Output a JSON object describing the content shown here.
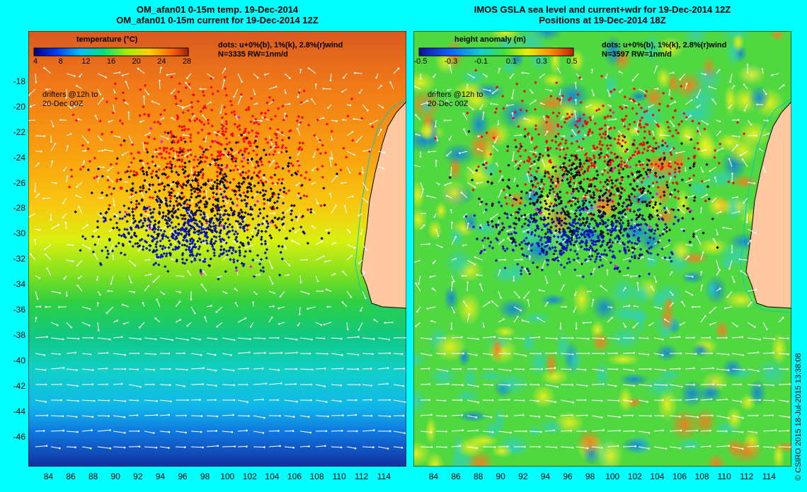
{
  "left_panel": {
    "title_line1": "OM_afan01 0-15m temp. 19-Dec-2014",
    "title_line2": "OM_afan01 0-15m current for 19-Dec-2014 12Z",
    "colorbar_label": "temperature (°C)",
    "colorbar_ticks": [
      "4",
      "8",
      "12",
      "16",
      "20",
      "24",
      "28"
    ],
    "dots_line1": "dots: u+0%(b), 1%(k), 2.8%(r)wind",
    "dots_line2": "N=3335 RW=1nm/d",
    "drifters_line1": "drifters @12h to",
    "drifters_line2": "20-Dec 00Z"
  },
  "right_panel": {
    "title_line1": "IMOS GSLA sea level and current+wdr for 19-Dec-2014 12Z",
    "title_line2": "Positions at 19-Dec-2014 18Z",
    "colorbar_label": "height anomaly (m)",
    "colorbar_ticks": [
      "-0.5",
      "-0.3",
      "-0.1",
      "0.1",
      "0.3",
      "0.5"
    ],
    "dots_line1": "dots: u+0%(b), 1%(k), 2.8%(r)wind",
    "dots_line2": "N=3597 RW=1nm/d",
    "drifters_line1": "drifters @12h to",
    "drifters_line2": "20-Dec 00Z"
  },
  "axes": {
    "lat_ticks": [
      "-18",
      "-20",
      "-22",
      "-24",
      "-26",
      "-28",
      "-30",
      "-32",
      "-34",
      "-36",
      "-38",
      "-40",
      "-42",
      "-44",
      "-46"
    ],
    "lon_ticks": [
      "84",
      "86",
      "88",
      "90",
      "92",
      "94",
      "96",
      "98",
      "100",
      "102",
      "104",
      "106",
      "108",
      "110",
      "112",
      "114"
    ],
    "lat_range": [
      -48.3,
      -14
    ],
    "lon_range": [
      82.2,
      116
    ]
  },
  "credit": "© CSIRO 2015   18-Jul-2015 13:38:08",
  "colors": {
    "background": "#00ffff",
    "land": "#ffc8a0",
    "blue_dots": "#0010c0",
    "black_dots": "#000000",
    "red_dots": "#ff0000",
    "magenta_dots": "#ff00ff"
  }
}
